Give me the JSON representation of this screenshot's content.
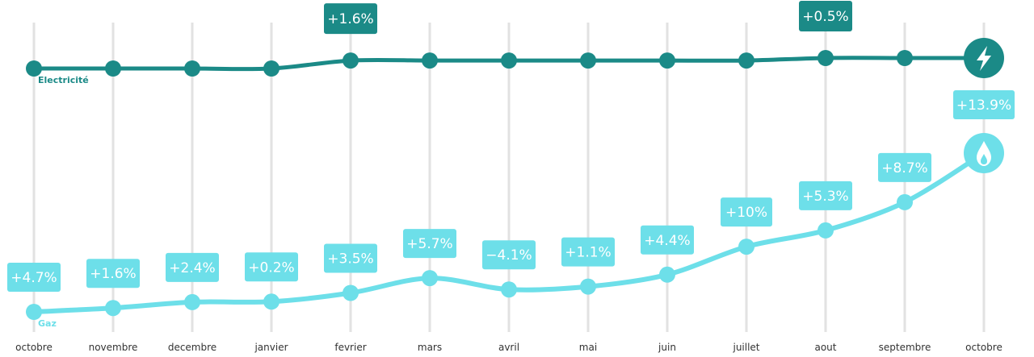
{
  "chart_data": {
    "type": "line",
    "categories": [
      "octobre",
      "novembre",
      "decembre",
      "janvier",
      "fevrier",
      "mars",
      "avril",
      "mai",
      "juin",
      "juillet",
      "aout",
      "septembre",
      "octobre"
    ],
    "series": [
      {
        "name": "Electricité",
        "color": "#1b8a87",
        "icon": "lightning-bolt-icon",
        "values": [
          100,
          100,
          100,
          100,
          101.6,
          101.6,
          101.6,
          101.6,
          101.6,
          101.6,
          102.1,
          102.1,
          102.1
        ],
        "labels": [
          "",
          "",
          "",
          "",
          "+1.6%",
          "",
          "",
          "",
          "",
          "",
          "+0.5%",
          "",
          ""
        ]
      },
      {
        "name": "Gaz",
        "color": "#6ddfe9",
        "icon": "flame-icon",
        "values": [
          100,
          101.6,
          104.0,
          104.2,
          107.8,
          113.9,
          109.2,
          110.4,
          115.3,
          126.8,
          133.5,
          145.1,
          165.3
        ],
        "labels": [
          "+4.7%",
          "+1.6%",
          "+2.4%",
          "+0.2%",
          "+3.5%",
          "+5.7%",
          "−4.1%",
          "+1.1%",
          "+4.4%",
          "+10%",
          "+5.3%",
          "+8.7%",
          "+13.9%"
        ]
      }
    ],
    "grid": "vertical",
    "legend": "inline"
  }
}
